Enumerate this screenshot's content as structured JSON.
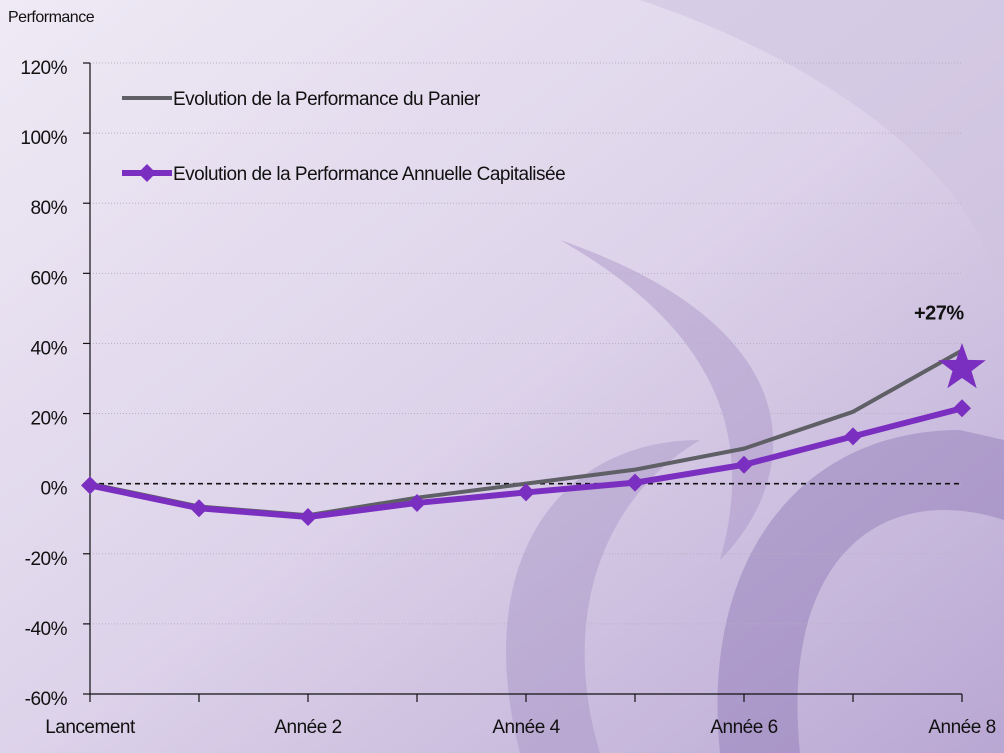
{
  "chart_data": {
    "type": "line",
    "y_axis_label": "Performance",
    "categories": [
      "Lancement",
      null,
      "Année 2",
      null,
      "Année 4",
      null,
      "Année 6",
      null,
      "Année 8"
    ],
    "series": [
      {
        "name": "Evolution de la Performance  du Panier",
        "color": "#5f5f66",
        "marker": false,
        "values": [
          0,
          -6.5,
          -9,
          -4,
          0,
          4,
          10,
          20.5,
          38
        ]
      },
      {
        "name": "Evolution de la Performance  Annuelle Capitalisée",
        "color": "#7b2fc0",
        "marker": true,
        "values": [
          -0.5,
          -7,
          -9.5,
          -5.5,
          -2.5,
          0.3,
          5.4,
          13.5,
          21.5
        ]
      }
    ],
    "annotation": {
      "text": "+27%",
      "y": 33,
      "color": "#7b2fc0"
    },
    "ylim": [
      -60,
      120
    ],
    "yticks": [
      {
        "value": -60,
        "label": "-60%"
      },
      {
        "value": -40,
        "label": "-40%"
      },
      {
        "value": -20,
        "label": "-20%"
      },
      {
        "value": 0,
        "label": "0%"
      },
      {
        "value": 20,
        "label": "20%"
      },
      {
        "value": 40,
        "label": "40%"
      },
      {
        "value": 60,
        "label": "60%"
      },
      {
        "value": 80,
        "label": "80%"
      },
      {
        "value": 100,
        "label": "100%"
      },
      {
        "value": 120,
        "label": "120%"
      }
    ],
    "grid": true,
    "legend": "top-left"
  }
}
